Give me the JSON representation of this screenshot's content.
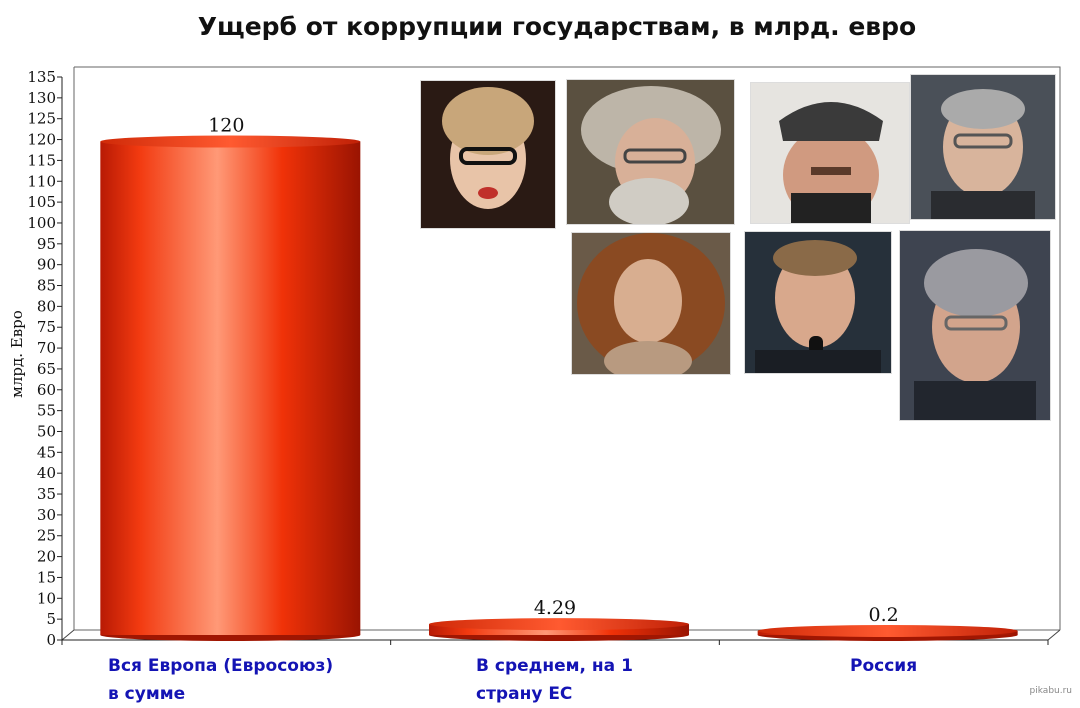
{
  "chart_data": {
    "type": "bar",
    "title": "Ущерб от коррупции государствам, в млрд. евро",
    "ylabel": "млрд. Евро",
    "xlabel": "",
    "ylim": [
      0,
      135
    ],
    "ytick_step": 5,
    "grid": false,
    "categories": [
      "Вся Европа (Евросоюз)\nв сумме",
      "В среднем, на 1\nстрану ЕС",
      "Россия"
    ],
    "values": [
      120,
      4.29,
      0.2
    ],
    "data_labels": [
      "120",
      "4.29",
      "0.2"
    ],
    "bar_color": "#e8290b",
    "category_color": "#1414b4"
  },
  "watermark": "pikabu.ru"
}
